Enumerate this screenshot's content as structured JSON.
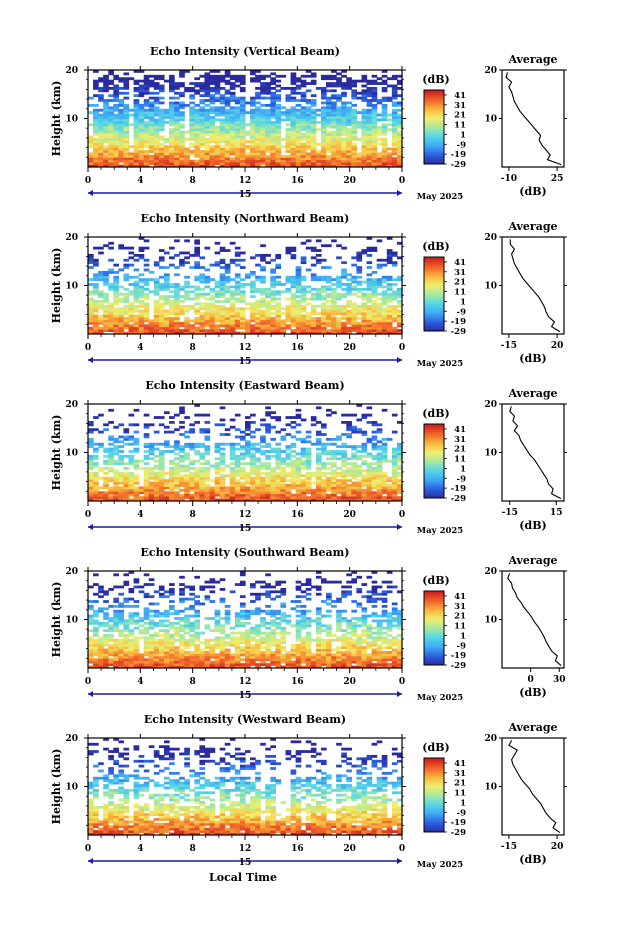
{
  "date_label": "May 2025",
  "x_axis_label": "Local Time",
  "height_label": "Height (km)",
  "unit_label": "(dB)",
  "average_title": "Average",
  "day_label": "15",
  "colorbar_ticks": [
    "41",
    "31",
    "21",
    "11",
    "1",
    "-9",
    "-19",
    "-29"
  ],
  "colorbar_range": [
    -29,
    46
  ],
  "colors": {
    "scale": [
      "#2a2a9e",
      "#2b5fe0",
      "#3fa9f5",
      "#55d6e8",
      "#a8e8a0",
      "#f2ee6a",
      "#f7b43c",
      "#f0602a",
      "#c81e1e"
    ]
  },
  "chart_data": [
    {
      "type": "heatmap",
      "title": "Echo Intensity (Vertical Beam)",
      "xlabel": "",
      "ylabel": "Height (km)",
      "x_ticks": [
        "0",
        "4",
        "8",
        "12",
        "16",
        "20",
        "0"
      ],
      "y_ticks": [
        "20",
        "10"
      ],
      "xlim": [
        0,
        24
      ],
      "ylim": [
        0,
        20
      ],
      "colorbar": {
        "label": "(dB)",
        "min": -29,
        "max": 46
      },
      "average_profile": {
        "xlabel": "(dB)",
        "x_ticks": [
          "-10",
          "25"
        ],
        "xlim": [
          -15,
          30
        ],
        "height": [
          0.5,
          1.5,
          2.5,
          3.5,
          4.5,
          5.5,
          6.5,
          7.5,
          8.5,
          9.5,
          10.5,
          11.5,
          12.5,
          13.5,
          14.5,
          15.5,
          16.5,
          17.5,
          18.5,
          19.5
        ],
        "values": [
          28,
          18,
          20,
          17,
          14,
          12,
          13,
          10,
          7,
          4,
          1,
          -2,
          -4,
          -6,
          -7,
          -8,
          -10,
          -8,
          -12,
          -11
        ]
      }
    },
    {
      "type": "heatmap",
      "title": "Echo Intensity (Northward Beam)",
      "xlabel": "",
      "ylabel": "Height (km)",
      "x_ticks": [
        "0",
        "4",
        "8",
        "12",
        "16",
        "20",
        "0"
      ],
      "y_ticks": [
        "20",
        "10"
      ],
      "xlim": [
        0,
        24
      ],
      "ylim": [
        0,
        20
      ],
      "colorbar": {
        "label": "(dB)",
        "min": -29,
        "max": 46
      },
      "average_profile": {
        "xlabel": "(dB)",
        "x_ticks": [
          "-15",
          "20"
        ],
        "xlim": [
          -20,
          25
        ],
        "height": [
          0.5,
          1.5,
          2.5,
          3.5,
          4.5,
          5.5,
          6.5,
          7.5,
          8.5,
          9.5,
          10.5,
          11.5,
          12.5,
          13.5,
          14.5,
          15.5,
          16.5,
          17.5,
          18.5,
          19.5
        ],
        "values": [
          22,
          16,
          18,
          14,
          12,
          11,
          9,
          7,
          4,
          1,
          -2,
          -5,
          -7,
          -9,
          -11,
          -12,
          -13,
          -11,
          -14,
          -14
        ]
      }
    },
    {
      "type": "heatmap",
      "title": "Echo Intensity (Eastward Beam)",
      "xlabel": "",
      "ylabel": "Height (km)",
      "x_ticks": [
        "0",
        "4",
        "8",
        "12",
        "16",
        "20",
        "0"
      ],
      "y_ticks": [
        "20",
        "10"
      ],
      "xlim": [
        0,
        24
      ],
      "ylim": [
        0,
        20
      ],
      "colorbar": {
        "label": "(dB)",
        "min": -29,
        "max": 46
      },
      "average_profile": {
        "xlabel": "(dB)",
        "x_ticks": [
          "-15",
          "15"
        ],
        "xlim": [
          -20,
          20
        ],
        "height": [
          0.5,
          1.5,
          2.5,
          3.5,
          4.5,
          5.5,
          6.5,
          7.5,
          8.5,
          9.5,
          10.5,
          11.5,
          12.5,
          13.5,
          14.5,
          15.5,
          16.5,
          17.5,
          18.5,
          19.5
        ],
        "values": [
          18,
          12,
          13,
          10,
          9,
          7,
          5,
          3,
          1,
          -2,
          -4,
          -6,
          -8,
          -9,
          -12,
          -10,
          -13,
          -12,
          -15,
          -14
        ]
      }
    },
    {
      "type": "heatmap",
      "title": "Echo Intensity (Southward Beam)",
      "xlabel": "",
      "ylabel": "Height (km)",
      "x_ticks": [
        "0",
        "4",
        "8",
        "12",
        "16",
        "20",
        "0"
      ],
      "y_ticks": [
        "20",
        "10"
      ],
      "xlim": [
        0,
        24
      ],
      "ylim": [
        0,
        20
      ],
      "colorbar": {
        "label": "(dB)",
        "min": -29,
        "max": 46
      },
      "average_profile": {
        "xlabel": "(dB)",
        "x_ticks": [
          "0",
          "30"
        ],
        "xlim": [
          -30,
          35
        ],
        "height": [
          0.5,
          1.5,
          2.5,
          3.5,
          4.5,
          5.5,
          6.5,
          7.5,
          8.5,
          9.5,
          10.5,
          11.5,
          12.5,
          13.5,
          14.5,
          15.5,
          16.5,
          17.5,
          18.5,
          19.5
        ],
        "values": [
          32,
          26,
          28,
          22,
          19,
          16,
          14,
          11,
          8,
          4,
          1,
          -3,
          -7,
          -10,
          -14,
          -16,
          -19,
          -20,
          -24,
          -22
        ]
      }
    },
    {
      "type": "heatmap",
      "title": "Echo Intensity (Westward Beam)",
      "xlabel": "Local Time",
      "ylabel": "Height (km)",
      "x_ticks": [
        "0",
        "4",
        "8",
        "12",
        "16",
        "20",
        "0"
      ],
      "y_ticks": [
        "20",
        "10"
      ],
      "xlim": [
        0,
        24
      ],
      "ylim": [
        0,
        20
      ],
      "colorbar": {
        "label": "(dB)",
        "min": -29,
        "max": 46
      },
      "average_profile": {
        "xlabel": "(dB)",
        "x_ticks": [
          "-15",
          "20"
        ],
        "xlim": [
          -20,
          25
        ],
        "height": [
          0.5,
          1.5,
          2.5,
          3.5,
          4.5,
          5.5,
          6.5,
          7.5,
          8.5,
          9.5,
          10.5,
          11.5,
          12.5,
          13.5,
          14.5,
          15.5,
          16.5,
          17.5,
          18.5,
          19.5
        ],
        "values": [
          22,
          17,
          19,
          15,
          12,
          10,
          8,
          5,
          2,
          0,
          -3,
          -6,
          -8,
          -10,
          -12,
          -13,
          -11,
          -9,
          -15,
          -13
        ]
      }
    }
  ]
}
